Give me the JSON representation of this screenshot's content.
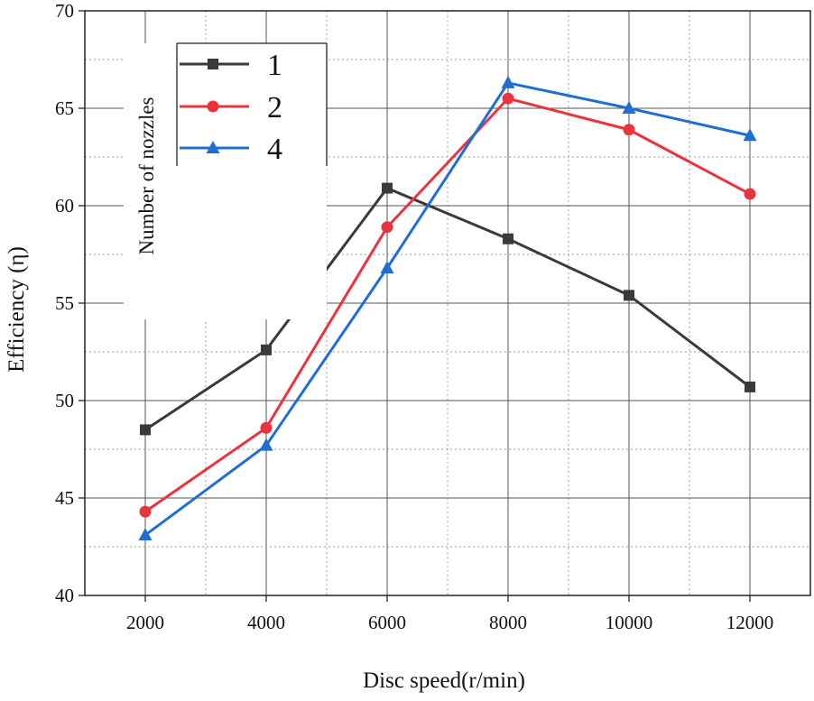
{
  "chart_data": {
    "type": "line",
    "title": "",
    "xlabel": "Disc speed(r/min)",
    "ylabel": "Efficiency (η)",
    "x": [
      2000,
      4000,
      6000,
      8000,
      10000,
      12000
    ],
    "x_tick_labels": [
      "2000",
      "4000",
      "6000",
      "8000",
      "10000",
      "12000"
    ],
    "xlim": [
      1000,
      13000
    ],
    "ylim": [
      40,
      70
    ],
    "y_ticks": [
      40,
      45,
      50,
      55,
      60,
      65,
      70
    ],
    "y_tick_labels": [
      "40",
      "45",
      "50",
      "55",
      "60",
      "65",
      "70"
    ],
    "grid": true,
    "legend_title": "Number of nozzles",
    "legend_position": "top-left",
    "series": [
      {
        "name": "1",
        "color": "#3a3a3a",
        "marker": "square",
        "values": [
          48.5,
          52.6,
          60.9,
          58.3,
          55.4,
          50.7
        ]
      },
      {
        "name": "2",
        "color": "#e8343e",
        "marker": "circle",
        "values": [
          44.3,
          48.6,
          58.9,
          65.5,
          63.9,
          60.6
        ]
      },
      {
        "name": "4",
        "color": "#1f6fd1",
        "marker": "triangle",
        "values": [
          43.1,
          47.7,
          56.8,
          66.3,
          65.0,
          63.6
        ]
      }
    ]
  }
}
